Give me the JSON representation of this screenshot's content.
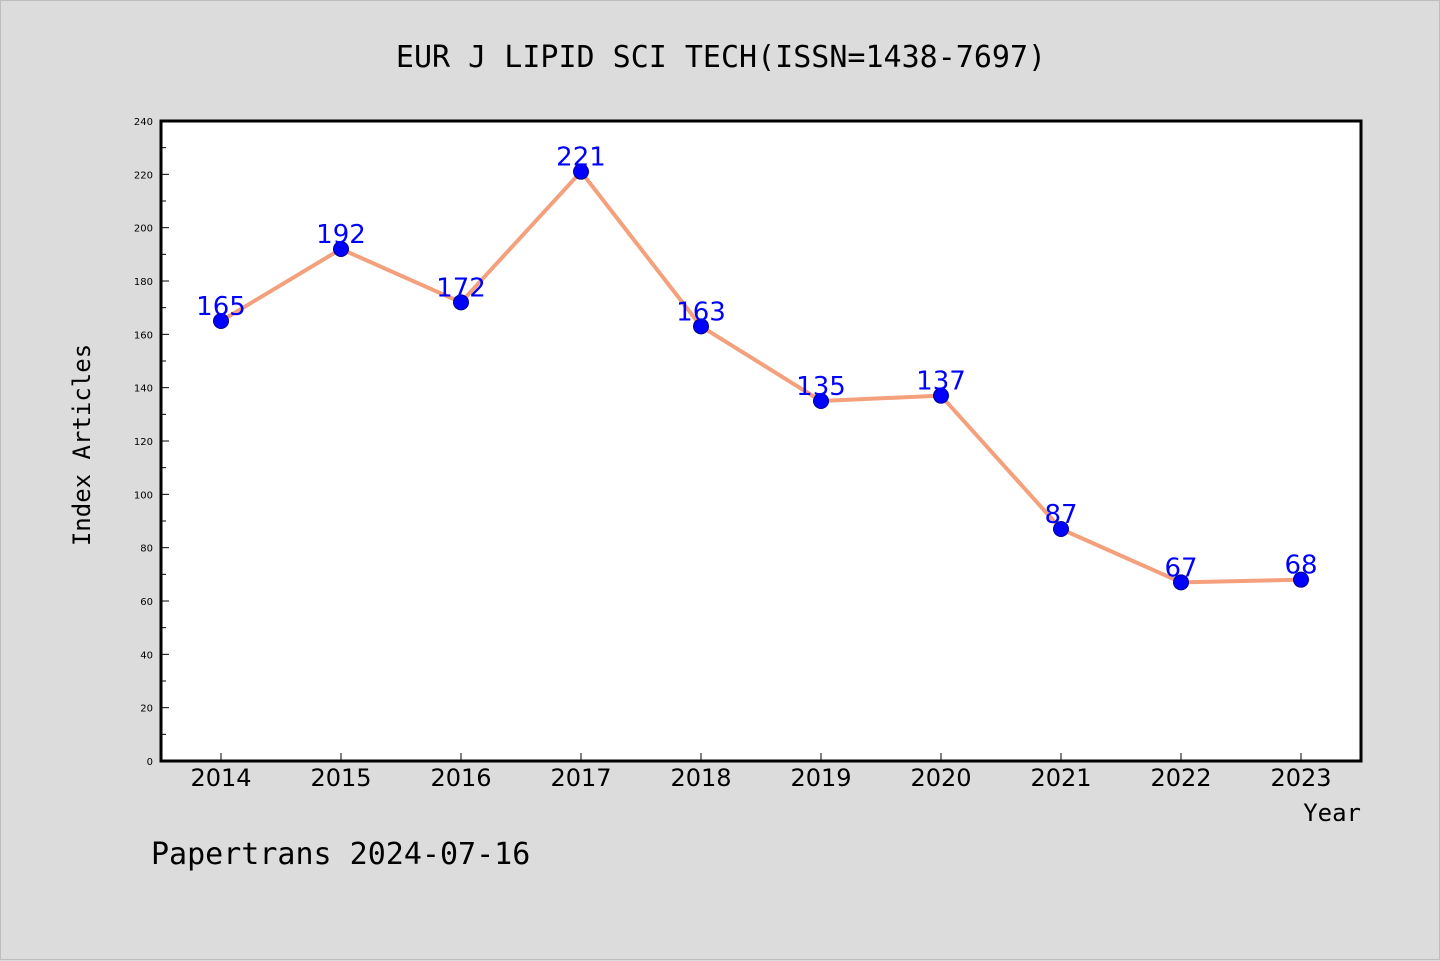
{
  "chart_data": {
    "type": "line",
    "title": "EUR J LIPID SCI TECH(ISSN=1438-7697)",
    "xlabel": "Year",
    "ylabel": "Index Articles",
    "categories": [
      "2014",
      "2015",
      "2016",
      "2017",
      "2018",
      "2019",
      "2020",
      "2021",
      "2022",
      "2023"
    ],
    "series": [
      {
        "values": [
          165,
          192,
          172,
          221,
          163,
          135,
          137,
          87,
          67,
          68
        ]
      }
    ],
    "ylim": [
      0,
      240
    ],
    "ytick_step": 20,
    "y_minor_step": 10,
    "grid": false,
    "legend": "none",
    "colors": {
      "line": "#f4a07c",
      "marker": "#0000ff",
      "marker_edge": "#00008b",
      "data_label": "#0000ff",
      "plot_bg": "#ffffff",
      "page_bg": "#dcdcdc",
      "axis": "#000000"
    }
  },
  "footer": {
    "credit": "Papertrans 2024-07-16"
  }
}
